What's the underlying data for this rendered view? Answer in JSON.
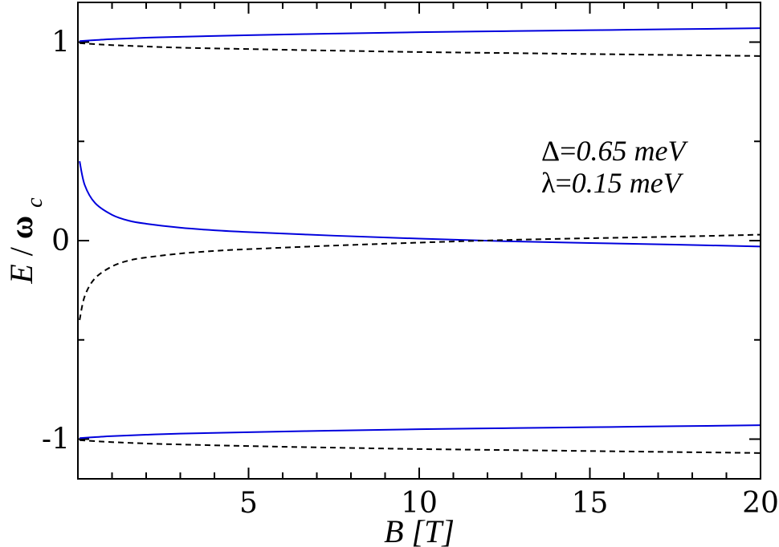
{
  "chart_data": {
    "type": "line",
    "xlabel_parts": {
      "var": "B",
      "unit": "[T]"
    },
    "ylabel_parts": {
      "e": "E",
      "slash": "/",
      "omega": "ω",
      "sub": "c"
    },
    "xlim": [
      0,
      20
    ],
    "ylim": [
      -1.2,
      1.2
    ],
    "x_ticks": [
      5,
      10,
      15,
      20
    ],
    "x_tick_labels": [
      "5",
      "10",
      "15",
      "20"
    ],
    "y_ticks": [
      -1,
      0,
      1
    ],
    "y_tick_labels": [
      "-1",
      "0",
      "1"
    ],
    "grid": false,
    "annotations": [
      {
        "symbol": "Δ",
        "eq": "=",
        "value": "0.65 meV"
      },
      {
        "symbol": "λ",
        "eq": "=",
        "value": "0.15 meV"
      }
    ],
    "series": [
      {
        "style": "solid",
        "color": "#0000dd",
        "x": [
          0.05,
          0.5,
          1,
          2,
          3,
          5,
          7.5,
          10,
          12.5,
          15,
          17.5,
          20
        ],
        "y": [
          1.005,
          1.01,
          1.015,
          1.022,
          1.027,
          1.035,
          1.043,
          1.05,
          1.055,
          1.06,
          1.065,
          1.07
        ]
      },
      {
        "style": "dashed",
        "color": "#000000",
        "x": [
          0.05,
          0.5,
          1,
          2,
          3,
          5,
          7.5,
          10,
          12.5,
          15,
          17.5,
          20
        ],
        "y": [
          0.995,
          0.99,
          0.985,
          0.978,
          0.972,
          0.965,
          0.957,
          0.95,
          0.945,
          0.94,
          0.935,
          0.93
        ]
      },
      {
        "style": "solid",
        "color": "#0000dd",
        "x": [
          0.05,
          0.2,
          0.5,
          1,
          1.5,
          2,
          3,
          4,
          5,
          7.5,
          10,
          12.5,
          15,
          17.5,
          20
        ],
        "y": [
          0.4,
          0.28,
          0.19,
          0.13,
          0.1,
          0.085,
          0.065,
          0.052,
          0.043,
          0.025,
          0.01,
          -0.003,
          -0.012,
          -0.02,
          -0.03
        ]
      },
      {
        "style": "dashed",
        "color": "#000000",
        "x": [
          0.05,
          0.2,
          0.5,
          1,
          1.5,
          2,
          3,
          4,
          5,
          7.5,
          10,
          12.5,
          15,
          17.5,
          20
        ],
        "y": [
          -0.4,
          -0.28,
          -0.19,
          -0.13,
          -0.1,
          -0.085,
          -0.065,
          -0.052,
          -0.043,
          -0.025,
          -0.01,
          0.003,
          0.012,
          0.02,
          0.03
        ]
      },
      {
        "style": "solid",
        "color": "#0000dd",
        "x": [
          0.05,
          0.5,
          1,
          2,
          3,
          5,
          7.5,
          10,
          12.5,
          15,
          17.5,
          20
        ],
        "y": [
          -0.995,
          -0.99,
          -0.985,
          -0.978,
          -0.972,
          -0.965,
          -0.957,
          -0.95,
          -0.945,
          -0.94,
          -0.935,
          -0.93
        ]
      },
      {
        "style": "dashed",
        "color": "#000000",
        "x": [
          0.05,
          0.5,
          1,
          2,
          3,
          5,
          7.5,
          10,
          12.5,
          15,
          17.5,
          20
        ],
        "y": [
          -1.005,
          -1.01,
          -1.015,
          -1.022,
          -1.027,
          -1.035,
          -1.043,
          -1.05,
          -1.055,
          -1.06,
          -1.065,
          -1.07
        ]
      }
    ]
  }
}
